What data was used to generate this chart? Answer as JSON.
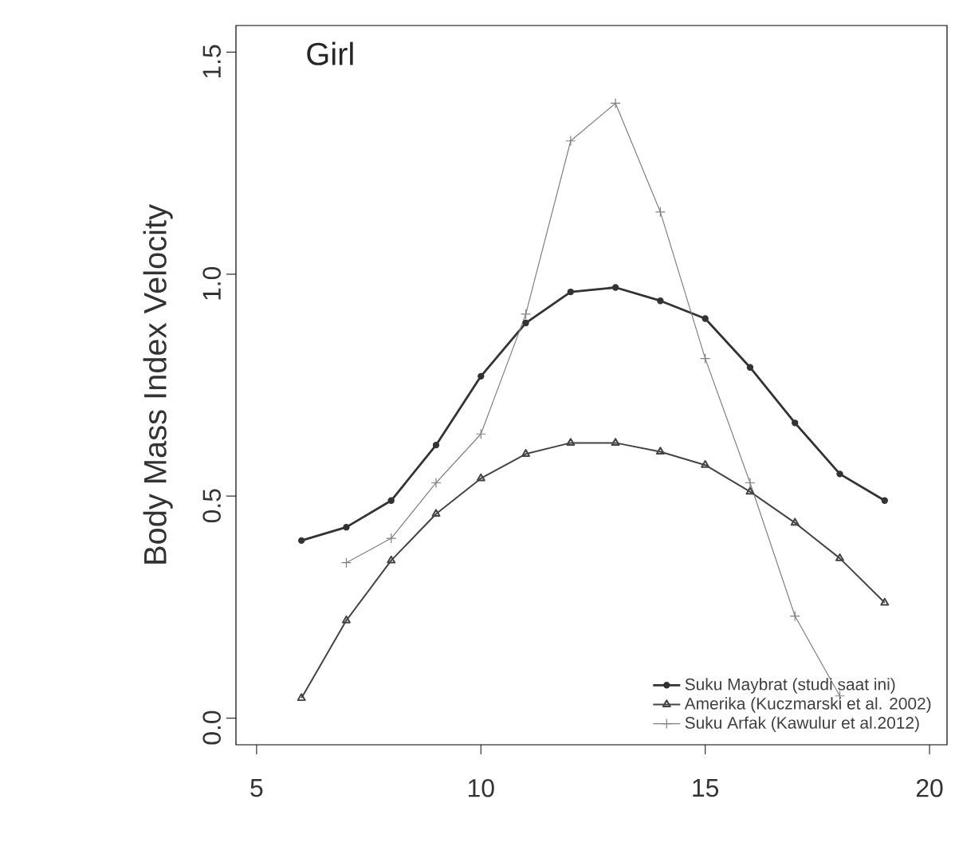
{
  "chart_data": {
    "type": "line",
    "ylabel": "Body Mass Index Velocity",
    "annotations": [
      "Girl"
    ],
    "xlim": [
      4.54,
      20.39
    ],
    "ylim": [
      -0.06,
      1.56
    ],
    "xticks": [
      5,
      10,
      15,
      20
    ],
    "yticks": [
      {
        "value": 0,
        "label": "0.0"
      },
      {
        "value": 0.5,
        "label": "0.5"
      },
      {
        "value": 1,
        "label": "1.0"
      },
      {
        "value": 1.5,
        "label": "1.5"
      }
    ],
    "grid": false,
    "legend": "bottom right",
    "series": [
      {
        "name": "Suku Maybrat (studi saat ini)",
        "color": "#333333",
        "marker": "circle",
        "x": [
          6,
          7,
          8,
          9,
          10,
          11,
          12,
          13,
          14,
          15,
          16,
          17,
          18,
          19
        ],
        "values": [
          0.4,
          0.43,
          0.49,
          0.615,
          0.77,
          0.89,
          0.96,
          0.97,
          0.94,
          0.9,
          0.79,
          0.665,
          0.55,
          0.49
        ]
      },
      {
        "name": "Amerika (Kuczmarski et al. 2002)",
        "color": "#444444",
        "marker": "triangle",
        "x": [
          6,
          7,
          8,
          9,
          10,
          11,
          12,
          13,
          14,
          15,
          16,
          17,
          18,
          19
        ],
        "values": [
          0.045,
          0.22,
          0.355,
          0.46,
          0.54,
          0.595,
          0.62,
          0.62,
          0.6,
          0.57,
          0.51,
          0.44,
          0.36,
          0.26
        ]
      },
      {
        "name": "Suku Arfak (Kawulur et al.2012)",
        "color": "#808080",
        "marker": "cross",
        "x": [
          7,
          8,
          9,
          10,
          11,
          12,
          13,
          14,
          15,
          16,
          17,
          18
        ],
        "values": [
          0.35,
          0.405,
          0.53,
          0.64,
          0.91,
          1.3,
          1.385,
          1.14,
          0.81,
          0.53,
          0.23,
          0.05
        ]
      }
    ]
  }
}
